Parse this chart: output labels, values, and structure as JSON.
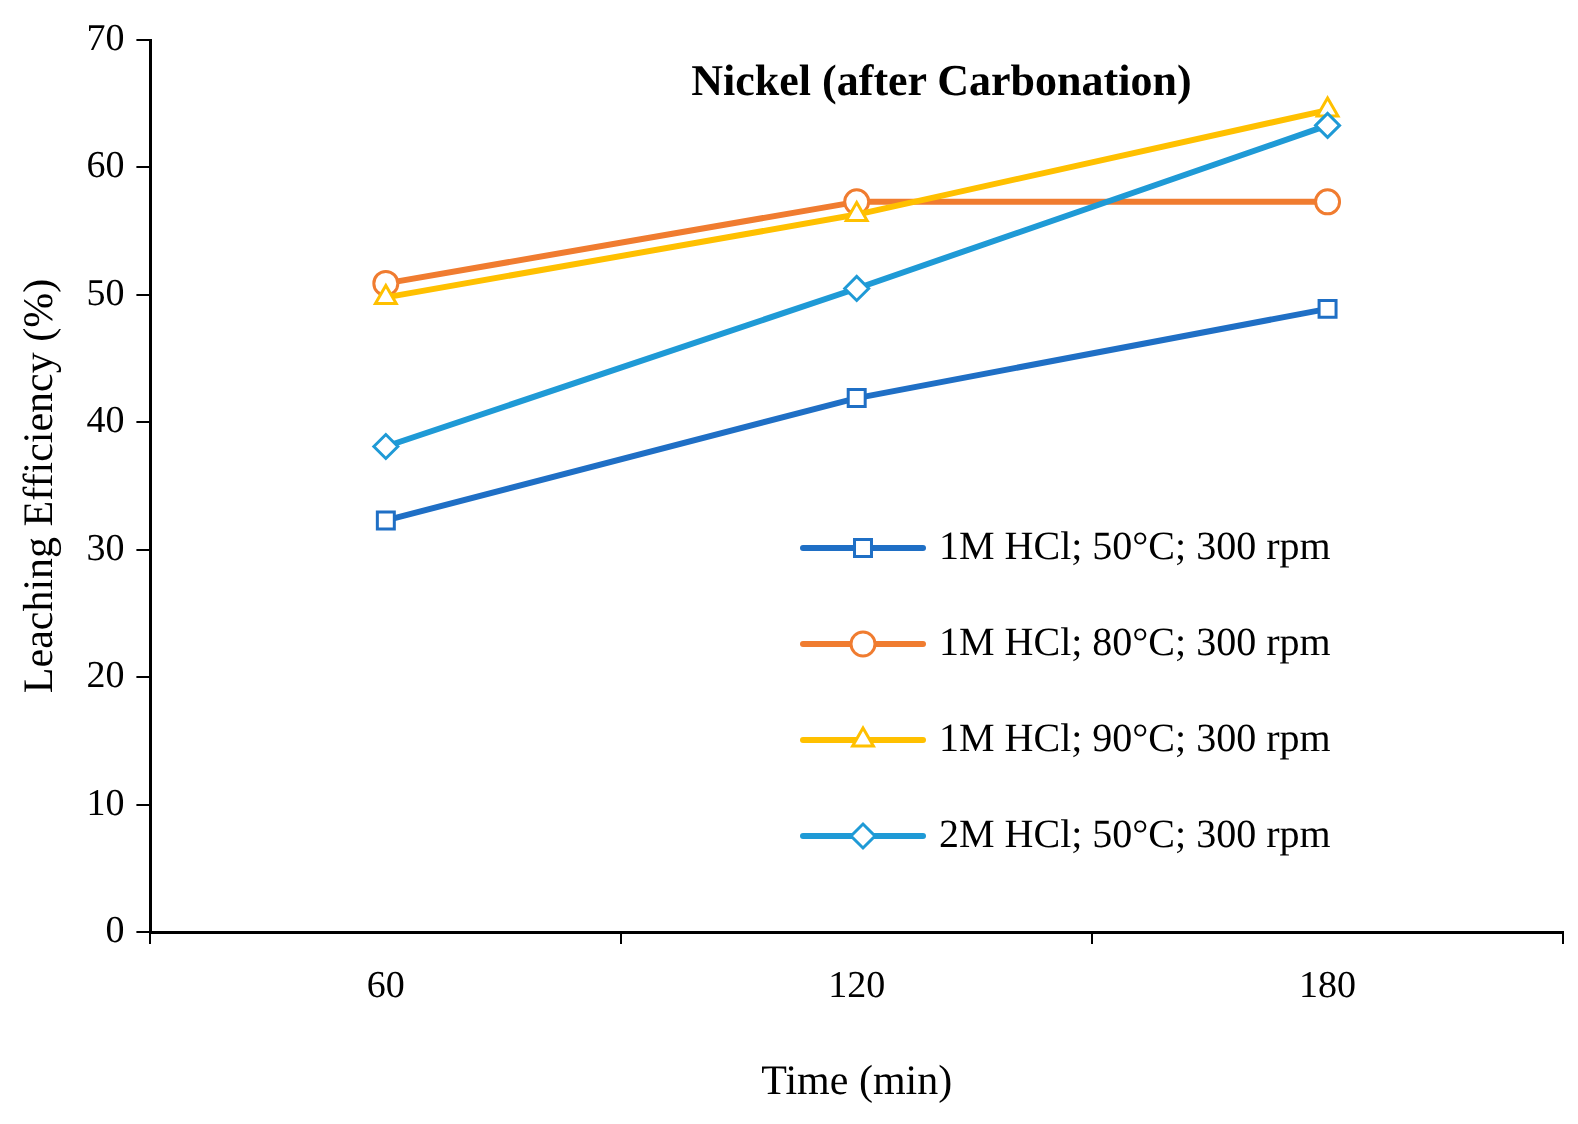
{
  "chart_data": {
    "type": "line",
    "title": "Nickel (after Carbonation)",
    "xlabel": "Time (min)",
    "ylabel": "Leaching Efficiency (%)",
    "categories": [
      "60",
      "120",
      "180"
    ],
    "ylim": [
      0,
      70
    ],
    "yticks": [
      0,
      10,
      20,
      30,
      40,
      50,
      60,
      70
    ],
    "grid": false,
    "legend": "bottom right",
    "line_style": "solid",
    "series": [
      {
        "name": "1M HCl; 50°C; 300 rpm",
        "color": "#1f6fc5",
        "marker": "square",
        "values": [
          32.3,
          41.9,
          48.9
        ]
      },
      {
        "name": "1M HCl; 80°C; 300 rpm",
        "color": "#f07c30",
        "marker": "circle",
        "values": [
          50.9,
          57.3,
          57.3
        ]
      },
      {
        "name": "1M HCl; 90°C; 300 rpm",
        "color": "#ffc000",
        "marker": "triangle",
        "values": [
          49.8,
          56.3,
          64.5
        ]
      },
      {
        "name": "2M HCl; 50°C; 300 rpm",
        "color": "#1f9ad6",
        "marker": "diamond",
        "values": [
          38.1,
          50.5,
          63.3
        ]
      }
    ]
  }
}
